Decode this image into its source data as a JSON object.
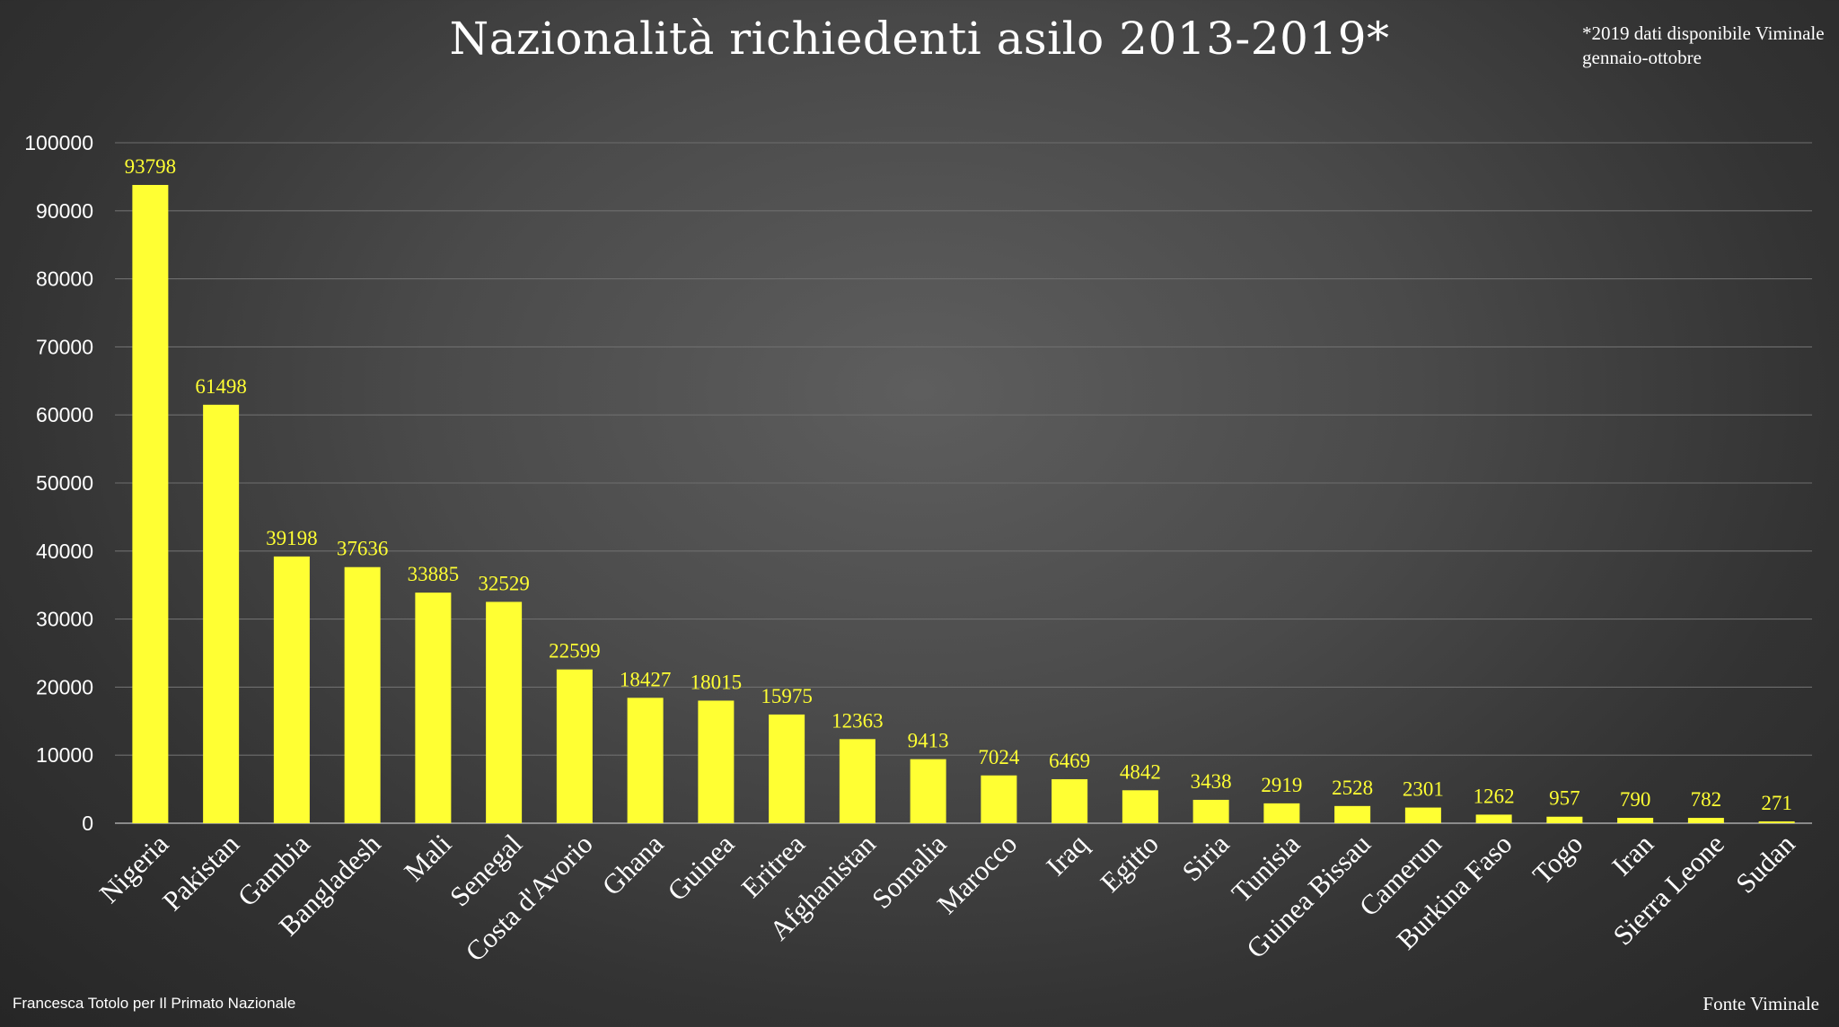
{
  "chart_data": {
    "type": "bar",
    "title": "Nazionalità richiedenti asilo 2013-2019*",
    "note": "*2019 dati disponibile Viminale gennaio-ottobre",
    "credit": "Francesca Totolo per Il Primato Nazionale",
    "source": "Fonte Viminale",
    "categories": [
      "Nigeria",
      "Pakistan",
      "Gambia",
      "Bangladesh",
      "Mali",
      "Senegal",
      "Costa d'Avorio",
      "Ghana",
      "Guinea",
      "Eritrea",
      "Afghanistan",
      "Somalia",
      "Marocco",
      "Iraq",
      "Egitto",
      "Siria",
      "Tunisia",
      "Guinea Bissau",
      "Camerun",
      "Burkina Faso",
      "Togo",
      "Iran",
      "Sierra Leone",
      "Sudan"
    ],
    "values": [
      93798,
      61498,
      39198,
      37636,
      33885,
      32529,
      22599,
      18427,
      18015,
      15975,
      12363,
      9413,
      7024,
      6469,
      4842,
      3438,
      2919,
      2528,
      2301,
      1262,
      957,
      790,
      782,
      271
    ],
    "yticks": [
      0,
      10000,
      20000,
      30000,
      40000,
      50000,
      60000,
      70000,
      80000,
      90000,
      100000
    ],
    "ylim": [
      0,
      100000
    ],
    "grid": true,
    "legend": "none",
    "bar_color": "#ffff33",
    "label_color": "#ffff33"
  }
}
